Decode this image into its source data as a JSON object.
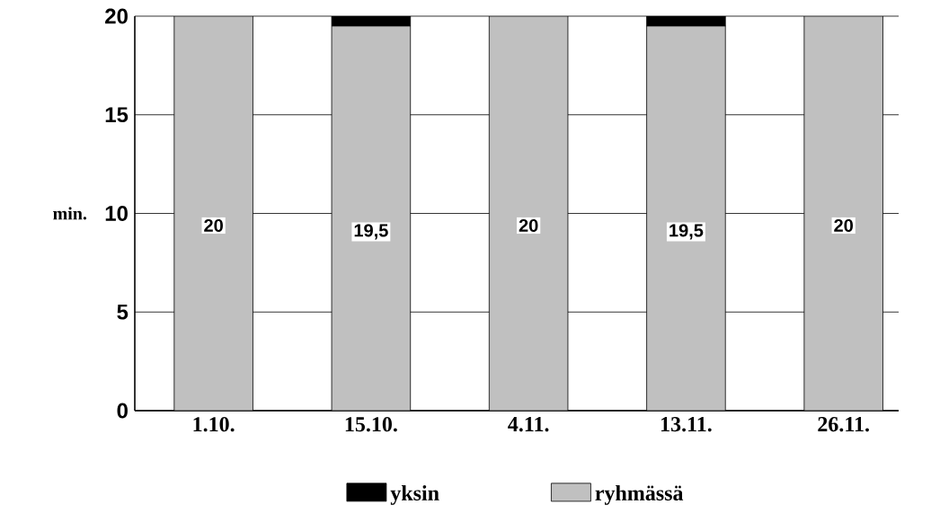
{
  "chart_data": {
    "type": "bar",
    "stacked": true,
    "ylabel": "min.",
    "categories": [
      "1.10.",
      "15.10.",
      "4.11.",
      "13.11.",
      "26.11."
    ],
    "series": [
      {
        "name": "ryhmässä",
        "color": "#c0c0c0",
        "values": [
          20,
          19.5,
          20,
          19.5,
          20
        ],
        "value_labels": [
          "20",
          "19,5",
          "20",
          "19,5",
          "20"
        ]
      },
      {
        "name": "yksin",
        "color": "#000000",
        "values": [
          0,
          0.5,
          0,
          0.5,
          0
        ]
      }
    ],
    "ylim": [
      0,
      20
    ],
    "yticks": [
      0,
      5,
      10,
      15,
      20
    ],
    "grid": "y",
    "legend": "bottom"
  }
}
